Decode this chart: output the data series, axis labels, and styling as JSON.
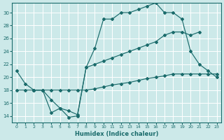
{
  "xlabel": "Humidex (Indice chaleur)",
  "bg_color": "#cce9e9",
  "line_color": "#1a6b6b",
  "grid_color": "#ffffff",
  "xlim": [
    -0.5,
    23.5
  ],
  "ylim": [
    13.0,
    31.5
  ],
  "xticks": [
    0,
    1,
    2,
    3,
    4,
    5,
    6,
    7,
    8,
    9,
    10,
    11,
    12,
    13,
    14,
    15,
    16,
    17,
    18,
    19,
    20,
    21,
    22,
    23
  ],
  "yticks": [
    14,
    16,
    18,
    20,
    22,
    24,
    26,
    28,
    30
  ],
  "line1_x": [
    0,
    1,
    2,
    3,
    4,
    5,
    6,
    7,
    8,
    9,
    10,
    11,
    12,
    13,
    14,
    15,
    16,
    17,
    18,
    19,
    20,
    21,
    22,
    23
  ],
  "line1_y": [
    21,
    19,
    18,
    18,
    14.5,
    15.2,
    13.8,
    14.0,
    21.5,
    24.5,
    29.0,
    29.0,
    30.0,
    30.0,
    30.5,
    31.0,
    31.5,
    30.0,
    30.0,
    29.0,
    24.0,
    22.0,
    21.0,
    20.0
  ],
  "line2_x": [
    2,
    3,
    4,
    5,
    6,
    7,
    8,
    9,
    10,
    11,
    12,
    13,
    14,
    15,
    16,
    17,
    18,
    19,
    20,
    21
  ],
  "line2_y": [
    18,
    18,
    16.5,
    15.2,
    14.8,
    14.2,
    21.5,
    22.0,
    22.5,
    23.0,
    23.5,
    24.0,
    24.5,
    25.0,
    25.5,
    26.5,
    27.0,
    27.0,
    26.5,
    27.0
  ],
  "line3_x": [
    0,
    1,
    2,
    3,
    4,
    5,
    6,
    7,
    8,
    9,
    10,
    11,
    12,
    13,
    14,
    15,
    16,
    17,
    18,
    19,
    20,
    21,
    22,
    23
  ],
  "line3_y": [
    18,
    18,
    18,
    18,
    18,
    18,
    18,
    18,
    18,
    18.2,
    18.5,
    18.8,
    19.0,
    19.2,
    19.5,
    19.8,
    20.0,
    20.2,
    20.5,
    20.5,
    20.5,
    20.5,
    20.5,
    20.5
  ]
}
